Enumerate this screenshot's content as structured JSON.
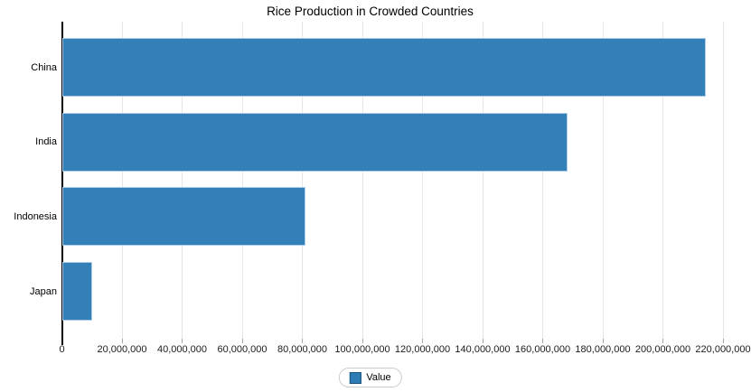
{
  "chart_data": {
    "type": "bar",
    "orientation": "horizontal",
    "title": "Rice Production in Crowded Countries",
    "categories": [
      "China",
      "India",
      "Indonesia",
      "Japan"
    ],
    "series": [
      {
        "name": "Value",
        "values": [
          214000000,
          168000000,
          81000000,
          9800000
        ]
      }
    ],
    "xlabel": "",
    "ylabel": "",
    "xlim": [
      0,
      220000000
    ],
    "x_tick_step": 20000000,
    "x_tick_labels": [
      "0",
      "20,000,000",
      "40,000,000",
      "60,000,000",
      "80,000,000",
      "100,000,000",
      "120,000,000",
      "140,000,000",
      "160,000,000",
      "180,000,000",
      "200,000,000",
      "220,000,000"
    ],
    "grid": "vertical light gray lines, no horizontal grid",
    "legend": {
      "position": "bottom-center",
      "entries": [
        "Value"
      ],
      "label": "Value"
    },
    "colors": {
      "bar_fill": "#3380b8",
      "bar_stroke": "#aecde6",
      "gridline": "#e6e6e6",
      "axis_line": "#000000",
      "tick": "#a6a6a6",
      "legend_border": "#cccccc",
      "legend_swatch_fill": "#2d7cb5",
      "legend_swatch_border": "#17537d",
      "text": "#000000"
    }
  }
}
